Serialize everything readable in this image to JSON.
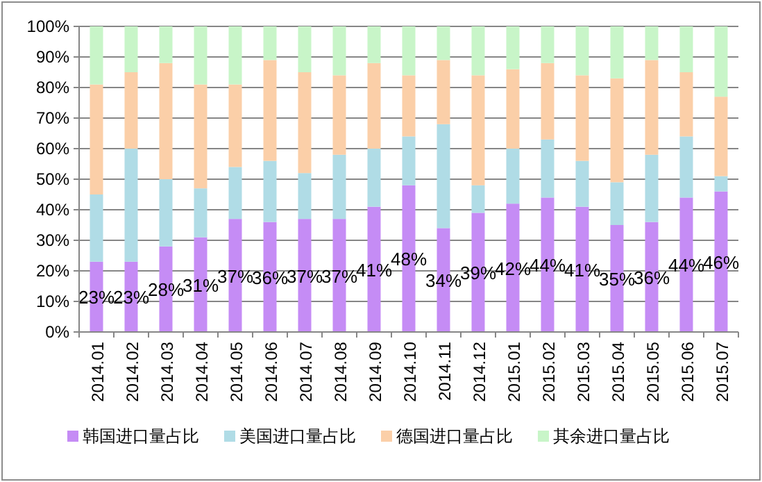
{
  "chart_data": {
    "type": "bar",
    "stacked": true,
    "categories": [
      "2014.01",
      "2014.02",
      "2014.03",
      "2014.04",
      "2014.05",
      "2014.06",
      "2014.07",
      "2014.08",
      "2014.09",
      "2014.10",
      "2014.11",
      "2014.12",
      "2015.01",
      "2015.02",
      "2015.03",
      "2015.04",
      "2015.05",
      "2015.06",
      "2015.07"
    ],
    "series": [
      {
        "name": "韩国进口量占比",
        "color": "#c58cf5",
        "values": [
          23,
          23,
          28,
          31,
          37,
          36,
          37,
          37,
          41,
          48,
          34,
          39,
          42,
          44,
          41,
          35,
          36,
          44,
          46
        ],
        "value_labels": [
          "23%",
          "23%",
          "28%",
          "31%",
          "37%",
          "36%",
          "37%",
          "37%",
          "41%",
          "48%",
          "34%",
          "39%",
          "42%",
          "44%",
          "41%",
          "35%",
          "36%",
          "44%",
          "46%"
        ]
      },
      {
        "name": "美国进口量占比",
        "color": "#b0dce6",
        "values": [
          22,
          37,
          22,
          16,
          17,
          20,
          15,
          21,
          19,
          16,
          34,
          9,
          18,
          19,
          15,
          14,
          22,
          20,
          5
        ]
      },
      {
        "name": "德国进口量占比",
        "color": "#fbcfa8",
        "values": [
          36,
          25,
          38,
          34,
          27,
          33,
          33,
          26,
          28,
          20,
          21,
          36,
          26,
          25,
          28,
          34,
          31,
          21,
          26
        ]
      },
      {
        "name": "其余进口量占比",
        "color": "#c8f5c8",
        "values": [
          19,
          15,
          12,
          19,
          19,
          11,
          15,
          16,
          12,
          16,
          11,
          16,
          14,
          12,
          16,
          17,
          11,
          15,
          23
        ]
      }
    ],
    "ylim": [
      0,
      100
    ],
    "yticks": [
      {
        "value": 0,
        "label": "0%"
      },
      {
        "value": 10,
        "label": "10%"
      },
      {
        "value": 20,
        "label": "20%"
      },
      {
        "value": 30,
        "label": "30%"
      },
      {
        "value": 40,
        "label": "40%"
      },
      {
        "value": 50,
        "label": "50%"
      },
      {
        "value": 60,
        "label": "60%"
      },
      {
        "value": 70,
        "label": "70%"
      },
      {
        "value": 80,
        "label": "80%"
      },
      {
        "value": 90,
        "label": "90%"
      },
      {
        "value": 100,
        "label": "100%"
      }
    ],
    "grid": "y",
    "legend": "bottom"
  }
}
